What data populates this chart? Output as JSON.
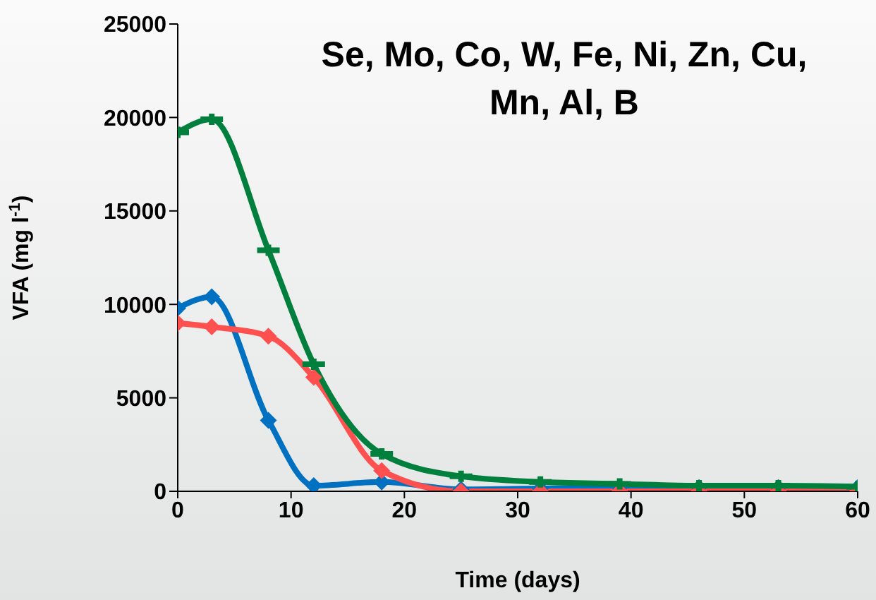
{
  "chart_data": {
    "type": "line",
    "title": "Se, Mo, Co, W, Fe, Ni, Zn, Cu,\nMn, Al, B",
    "xlabel": "Time (days)",
    "ylabel": "VFA (mg l$^{-1}$)",
    "x": [
      0,
      3,
      8,
      12,
      18,
      25,
      32,
      39,
      46,
      53,
      60
    ],
    "series": [
      {
        "color": "#0070c0",
        "marker": "diamond",
        "values": [
          9800,
          10400,
          3800,
          300,
          500,
          100,
          150,
          200,
          200,
          200,
          200
        ]
      },
      {
        "color": "#ff5050",
        "marker": "diamond",
        "values": [
          9000,
          8800,
          8300,
          6100,
          1100,
          0,
          0,
          0,
          0,
          0,
          0
        ]
      },
      {
        "color": "#00803c",
        "marker": "cross",
        "values": [
          19200,
          19900,
          12900,
          6800,
          2000,
          800,
          500,
          400,
          300,
          300,
          250
        ]
      }
    ],
    "xlim": [
      0,
      60
    ],
    "xticks": [
      0,
      10,
      20,
      30,
      40,
      50,
      60
    ],
    "ylim": [
      0,
      25000
    ],
    "yticks": [
      0,
      5000,
      10000,
      15000,
      20000,
      25000
    ],
    "grid": false,
    "line_style": "solid"
  }
}
